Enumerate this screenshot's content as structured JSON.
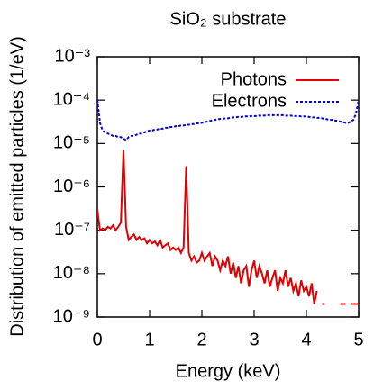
{
  "chart_data": {
    "type": "line",
    "title": "SiO₂ substrate",
    "x_label": "Energy (keV)",
    "y_label": "Distribution of emitted particles (1/eV)",
    "x": [
      0,
      0.05,
      0.1,
      0.15,
      0.2,
      0.25,
      0.3,
      0.35,
      0.4,
      0.45,
      0.5,
      0.55,
      0.6,
      0.65,
      0.7,
      0.75,
      0.8,
      0.85,
      0.9,
      0.95,
      1,
      1.05,
      1.1,
      1.15,
      1.2,
      1.25,
      1.3,
      1.35,
      1.4,
      1.45,
      1.5,
      1.55,
      1.6,
      1.65,
      1.7,
      1.75,
      1.8,
      1.85,
      1.9,
      1.95,
      2,
      2.05,
      2.1,
      2.15,
      2.2,
      2.25,
      2.3,
      2.35,
      2.4,
      2.45,
      2.5,
      2.55,
      2.6,
      2.65,
      2.7,
      2.75,
      2.8,
      2.85,
      2.9,
      2.95,
      3,
      3.05,
      3.1,
      3.15,
      3.2,
      3.25,
      3.3,
      3.35,
      3.4,
      3.45,
      3.5,
      3.55,
      3.6,
      3.65,
      3.7,
      3.75,
      3.8,
      3.85,
      3.9,
      3.95,
      4,
      4.05,
      4.1,
      4.15,
      4.2,
      4.25,
      4.3,
      4.35,
      4.4,
      4.45,
      4.5,
      4.55,
      4.6,
      4.65,
      4.7,
      4.75,
      4.8,
      4.85,
      4.9,
      4.95,
      5
    ],
    "series": [
      {
        "name": "Photons",
        "color": "#e00000",
        "dash": false,
        "values": [
          3e-07,
          1e-07,
          1.1e-07,
          1e-07,
          1.2e-07,
          1.1e-07,
          1.3e-07,
          1e-07,
          1.2e-07,
          1.5e-07,
          7e-06,
          1.2e-07,
          6e-08,
          7e-08,
          8e-08,
          6e-08,
          7e-08,
          6e-08,
          6.5e-08,
          5e-08,
          6e-08,
          5e-08,
          5.5e-08,
          4.5e-08,
          6e-08,
          4e-08,
          4.5e-08,
          5e-08,
          3.5e-08,
          4e-08,
          3.5e-08,
          4e-08,
          3e-08,
          4e-08,
          3e-06,
          3e-08,
          2e-08,
          2.5e-08,
          1.8e-08,
          2e-08,
          3e-08,
          2e-08,
          2.5e-08,
          3e-08,
          1.5e-08,
          2.5e-08,
          2e-08,
          1.2e-08,
          2e-08,
          1.5e-08,
          2.5e-08,
          1e-08,
          1.8e-08,
          8e-09,
          1.5e-08,
          6e-09,
          1.2e-08,
          1.5e-08,
          5e-09,
          1.2e-08,
          2e-08,
          8e-09,
          1.5e-08,
          1e-08,
          6e-09,
          1.2e-08,
          5e-09,
          8e-09,
          1.2e-08,
          4e-09,
          8e-09,
          6e-09,
          1.2e-08,
          5e-09,
          8e-09,
          4e-09,
          6e-09,
          3e-09,
          7e-09,
          4e-09,
          5e-09,
          3e-09,
          6e-09,
          2e-09,
          4e-09,
          null,
          2e-09,
          2e-09,
          null,
          2e-09,
          null,
          3e-09,
          null,
          2e-09,
          2e-09,
          2e-09,
          null,
          2e-09,
          2e-09,
          2e-09,
          2e-09
        ]
      },
      {
        "name": "Electrons",
        "color": "#0000e0",
        "dash": true,
        "values": [
          0.0001,
          3e-05,
          2e-05,
          1.8e-05,
          1.7e-05,
          1.6e-05,
          1.5e-05,
          1.5e-05,
          1.4e-05,
          1.4e-05,
          1.3e-05,
          1.2e-05,
          1.4e-05,
          1.5e-05,
          1.5e-05,
          1.6e-05,
          1.7e-05,
          1.7e-05,
          1.8e-05,
          1.9e-05,
          2e-05,
          2e-05,
          2.1e-05,
          2.1e-05,
          2.2e-05,
          2.2e-05,
          2.3e-05,
          2.3e-05,
          2.4e-05,
          2.4e-05,
          2.5e-05,
          2.5e-05,
          2.6e-05,
          2.6e-05,
          2.7e-05,
          2.7e-05,
          2.8e-05,
          2.8e-05,
          2.9e-05,
          2.9e-05,
          3e-05,
          3.1e-05,
          3.2e-05,
          3.3e-05,
          3.4e-05,
          3.5e-05,
          3.6e-05,
          3.7e-05,
          3.7e-05,
          3.8e-05,
          3.8e-05,
          3.9e-05,
          4e-05,
          4e-05,
          4.1e-05,
          4.1e-05,
          4.2e-05,
          4.2e-05,
          4.2e-05,
          4.3e-05,
          4.3e-05,
          4.3e-05,
          4.4e-05,
          4.4e-05,
          4.4e-05,
          4.5e-05,
          4.5e-05,
          4.5e-05,
          4.5e-05,
          4.5e-05,
          4.5e-05,
          4.5e-05,
          4.4e-05,
          4.4e-05,
          4.4e-05,
          4.3e-05,
          4.3e-05,
          4.3e-05,
          4.2e-05,
          4.2e-05,
          4.2e-05,
          4.1e-05,
          4e-05,
          4e-05,
          3.9e-05,
          3.9e-05,
          3.8e-05,
          3.7e-05,
          3.6e-05,
          3.5e-05,
          3.5e-05,
          3.4e-05,
          3.3e-05,
          3.2e-05,
          3.1e-05,
          3e-05,
          3e-05,
          3.2e-05,
          3.5e-05,
          5e-05,
          0.0001
        ]
      }
    ],
    "xlim": [
      0,
      5
    ],
    "xticks": [
      0,
      1,
      2,
      3,
      4,
      5
    ],
    "ylim": [
      1e-09,
      0.001
    ],
    "log_y": true,
    "yticks": [
      {
        "value": 1e-09,
        "label": "10⁻⁹"
      },
      {
        "value": 1e-08,
        "label": "10⁻⁸"
      },
      {
        "value": 1e-07,
        "label": "10⁻⁷"
      },
      {
        "value": 1e-06,
        "label": "10⁻⁶"
      },
      {
        "value": 1e-05,
        "label": "10⁻⁵"
      },
      {
        "value": 0.0001,
        "label": "10⁻⁴"
      },
      {
        "value": 0.001,
        "label": "10⁻³"
      }
    ],
    "legend": "top-right"
  }
}
